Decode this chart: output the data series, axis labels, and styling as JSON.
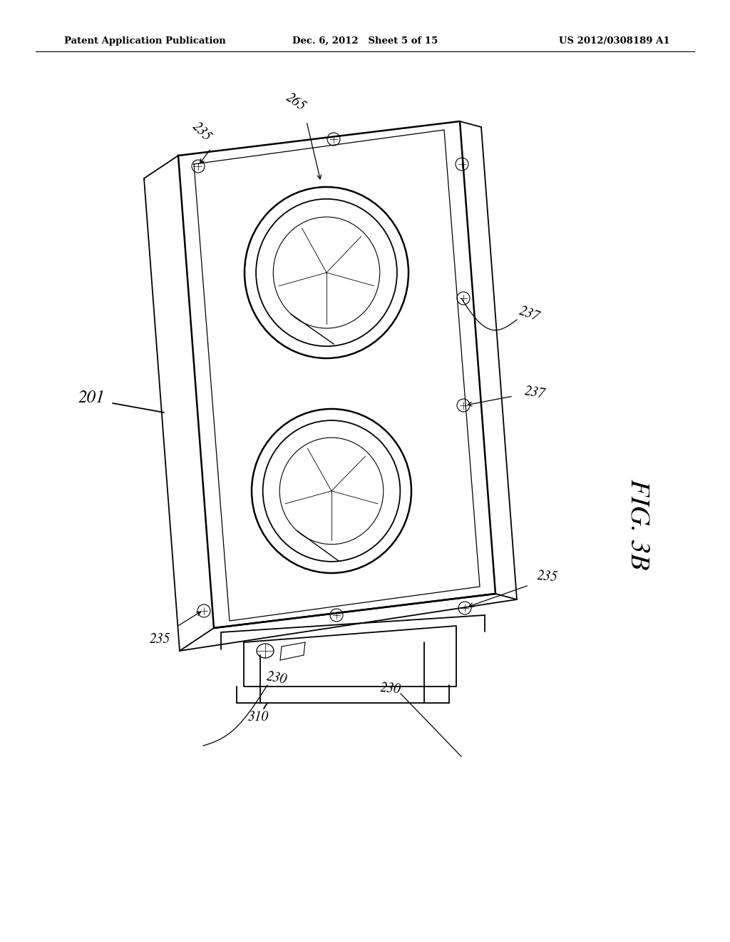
{
  "background_color": "#ffffff",
  "header_left": "Patent Application Publication",
  "header_mid": "Dec. 6, 2012   Sheet 5 of 15",
  "header_right": "US 2012/0308189 A1",
  "fig_label": "FIG. 3B"
}
